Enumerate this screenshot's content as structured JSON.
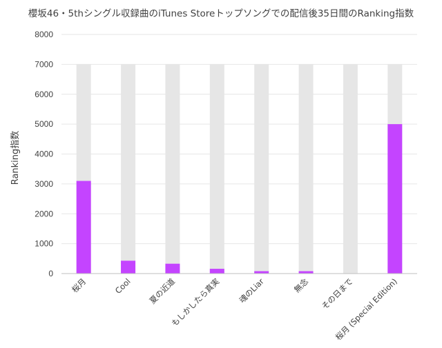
{
  "chart_data": {
    "type": "bar",
    "title": "櫻坂46・5thシングル収録曲のiTunes Storeトップソングでの配信後35日間のRanking指数",
    "ylabel": "Ranking指数",
    "xlabel": "",
    "ylim": [
      0,
      8000
    ],
    "yticks": [
      0,
      1000,
      2000,
      3000,
      4000,
      5000,
      6000,
      7000,
      8000
    ],
    "grid": true,
    "legend": "none",
    "categories": [
      "桜月",
      "Cool",
      "夏の近道",
      "もしかしたら真実",
      "魂のLiar",
      "無念",
      "その日まで",
      "桜月 (Special Edition)"
    ],
    "series": [
      {
        "values": [
          7000,
          7000,
          7000,
          7000,
          7000,
          7000,
          7000,
          7000
        ],
        "color": "#e6e6e6"
      },
      {
        "values": [
          3100,
          430,
          330,
          160,
          80,
          80,
          0,
          5000
        ],
        "color": "#c444ff"
      }
    ]
  }
}
